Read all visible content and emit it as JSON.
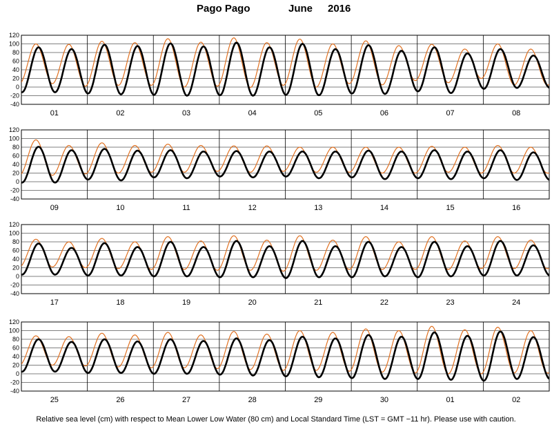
{
  "title": {
    "station": "Pago Pago",
    "month": "June",
    "year": "2016"
  },
  "caption": "Relative sea level (cm) with respect to Mean Lower Low Water (80 cm) and Local Standard Time (LST = GMT −11 hr). Please use with caution.",
  "colors": {
    "observed": "#000000",
    "predicted": "#e07020",
    "grid": "#000000"
  },
  "chart_data": [
    {
      "type": "line",
      "panel": 1,
      "days": [
        "01",
        "02",
        "03",
        "04",
        "05",
        "06",
        "07",
        "08"
      ],
      "ylim": [
        -40,
        120
      ],
      "yticks": [
        -40,
        -20,
        0,
        20,
        40,
        60,
        80,
        100,
        120
      ],
      "x_unit": "day of month, hours as fractional days",
      "tide_peaks_per_day": 2,
      "predicted_high_water_cm": [
        100,
        99,
        106,
        103,
        112,
        104,
        114,
        103,
        111,
        100,
        107,
        96,
        99,
        88,
        100,
        88
      ],
      "predicted_low_water_cm": [
        8,
        2,
        4,
        4,
        0,
        2,
        -1,
        4,
        0,
        8,
        5,
        15,
        10,
        20,
        5
      ],
      "observed_high_water_cm": [
        92,
        88,
        98,
        95,
        101,
        94,
        103,
        92,
        100,
        88,
        97,
        84,
        92,
        78,
        88,
        73
      ],
      "observed_low_water_cm": [
        -12,
        -15,
        -17,
        -18,
        -20,
        -19,
        -20,
        -18,
        -19,
        -15,
        -16,
        -10,
        -14,
        -4,
        -2
      ]
    },
    {
      "type": "line",
      "panel": 2,
      "days": [
        "09",
        "10",
        "11",
        "12",
        "13",
        "14",
        "15",
        "16"
      ],
      "ylim": [
        -40,
        120
      ],
      "yticks": [
        -40,
        -20,
        0,
        20,
        40,
        60,
        80,
        100,
        120
      ],
      "x_unit": "day of month, hours as fractional days",
      "tide_peaks_per_day": 2,
      "predicted_high_water_cm": [
        97,
        84,
        90,
        84,
        87,
        84,
        83,
        83,
        80,
        80,
        80,
        80,
        82,
        80,
        84,
        80
      ],
      "predicted_low_water_cm": [
        15,
        18,
        20,
        22,
        22,
        24,
        22,
        24,
        22,
        22,
        20,
        20,
        22,
        20,
        20
      ],
      "observed_high_water_cm": [
        81,
        73,
        76,
        72,
        73,
        70,
        71,
        70,
        70,
        70,
        72,
        70,
        73,
        70,
        73,
        68
      ],
      "observed_low_water_cm": [
        -2,
        5,
        3,
        10,
        8,
        12,
        10,
        12,
        8,
        10,
        6,
        8,
        6,
        8,
        4
      ]
    },
    {
      "type": "line",
      "panel": 3,
      "days": [
        "17",
        "18",
        "19",
        "20",
        "21",
        "22",
        "23",
        "24"
      ],
      "ylim": [
        -40,
        120
      ],
      "yticks": [
        -40,
        -20,
        0,
        20,
        40,
        60,
        80,
        100,
        120
      ],
      "x_unit": "day of month, hours as fractional days",
      "tide_peaks_per_day": 2,
      "predicted_high_water_cm": [
        86,
        80,
        88,
        80,
        92,
        82,
        94,
        84,
        94,
        84,
        92,
        80,
        92,
        82,
        92,
        84
      ],
      "predicted_low_water_cm": [
        22,
        20,
        18,
        16,
        16,
        14,
        14,
        12,
        14,
        16,
        16,
        16,
        16,
        18,
        18
      ],
      "observed_high_water_cm": [
        76,
        66,
        77,
        68,
        80,
        68,
        82,
        70,
        82,
        70,
        80,
        68,
        80,
        70,
        82,
        72
      ],
      "observed_low_water_cm": [
        4,
        2,
        2,
        0,
        0,
        -2,
        -2,
        -4,
        -2,
        -2,
        0,
        -2,
        0,
        2,
        2
      ]
    },
    {
      "type": "line",
      "panel": 4,
      "days": [
        "25",
        "26",
        "27",
        "28",
        "29",
        "30",
        "01",
        "02"
      ],
      "ylim": [
        -40,
        120
      ],
      "yticks": [
        -40,
        -20,
        0,
        20,
        40,
        60,
        80,
        100,
        120
      ],
      "x_unit": "day of month, hours as fractional days",
      "tide_peaks_per_day": 2,
      "predicted_high_water_cm": [
        88,
        86,
        94,
        90,
        96,
        90,
        98,
        92,
        100,
        96,
        104,
        100,
        110,
        102,
        108,
        100
      ],
      "predicted_low_water_cm": [
        20,
        18,
        16,
        14,
        14,
        12,
        10,
        8,
        8,
        6,
        4,
        2,
        0,
        0,
        2
      ],
      "observed_high_water_cm": [
        80,
        74,
        80,
        75,
        80,
        76,
        82,
        78,
        86,
        82,
        90,
        86,
        96,
        88,
        98,
        85
      ],
      "observed_low_water_cm": [
        5,
        2,
        2,
        0,
        0,
        -2,
        -4,
        -6,
        -8,
        -10,
        -12,
        -12,
        -14,
        -16,
        -12
      ]
    }
  ]
}
